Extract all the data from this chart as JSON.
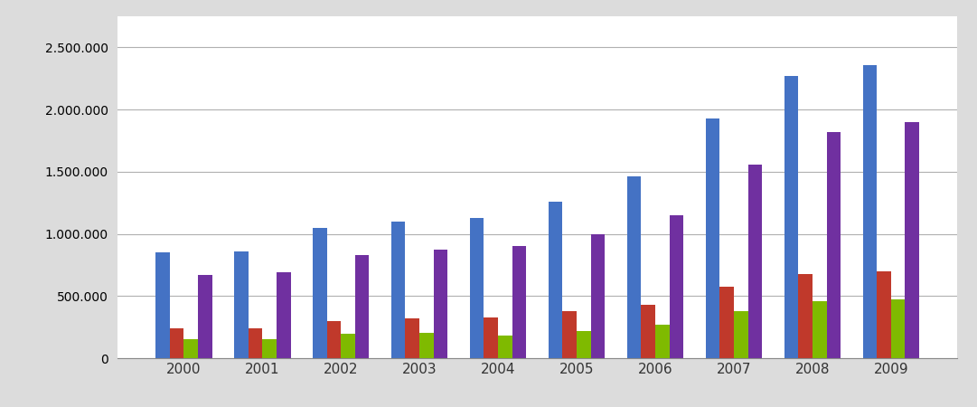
{
  "years": [
    2000,
    2001,
    2002,
    2003,
    2004,
    2005,
    2006,
    2007,
    2008,
    2009
  ],
  "blue": [
    850000,
    860000,
    1050000,
    1100000,
    1130000,
    1260000,
    1460000,
    1930000,
    2270000,
    2360000
  ],
  "red": [
    240000,
    240000,
    300000,
    320000,
    330000,
    380000,
    430000,
    575000,
    680000,
    700000
  ],
  "green": [
    155000,
    155000,
    200000,
    205000,
    180000,
    220000,
    270000,
    380000,
    460000,
    470000
  ],
  "purple": [
    670000,
    690000,
    830000,
    870000,
    900000,
    1000000,
    1150000,
    1560000,
    1820000,
    1900000
  ],
  "bar_colors": [
    "#4472c4",
    "#c0392b",
    "#7fba00",
    "#7030a0"
  ],
  "ylim": [
    0,
    2750000
  ],
  "yticks": [
    0,
    500000,
    1000000,
    1500000,
    2000000,
    2500000
  ],
  "background_color": "#dcdcdc",
  "plot_bg": "#ffffff",
  "grid_color": "#b0b0b0",
  "bar_width": 0.18,
  "figsize": [
    10.81,
    4.5
  ],
  "dpi": 100
}
